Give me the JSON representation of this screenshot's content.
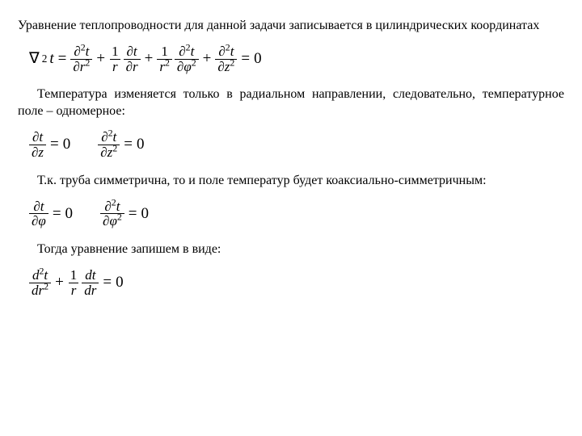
{
  "p1": "Уравнение теплопроводности для данной задачи записывается в цилиндрических координатах",
  "eq1": {
    "lhs": "∇",
    "sq": "2",
    "t": "t",
    "eq": "=",
    "t1n": "∂",
    "t1s": "2",
    "t1t": "t",
    "t1d1": "∂",
    "t1d2": "r",
    "t1ds": "2",
    "plus": "+",
    "one": "1",
    "r": "r",
    "t2n": "∂",
    "t2t": "t",
    "t2d": "∂",
    "t2dr": "r",
    "rsq": "r",
    "rsqe": "2",
    "t3n": "∂",
    "t3s": "2",
    "t3t": "t",
    "t3d": "∂",
    "t3dp": "φ",
    "t3ds": "2",
    "t4n": "∂",
    "t4s": "2",
    "t4t": "t",
    "t4d": "∂",
    "t4dz": "z",
    "t4ds": "2",
    "zero": "0"
  },
  "p2": "Температура изменяется только в радиальном направлении, следовательно, температурное поле – одномерное:",
  "eq2": {
    "a_n": "∂",
    "a_t": "t",
    "a_d": "∂",
    "a_dz": "z",
    "eq": "=",
    "zero": "0",
    "b_n": "∂",
    "b_s": "2",
    "b_t": "t",
    "b_d": "∂",
    "b_dz": "z",
    "b_ds": "2"
  },
  "p3": "Т.к. труба симметрична, то и поле температур будет коаксиально-симметричным:",
  "eq3": {
    "a_n": "∂",
    "a_t": "t",
    "a_d": "∂",
    "a_dp": "φ",
    "eq": "=",
    "zero": "0",
    "b_n": "∂",
    "b_s": "2",
    "b_t": "t",
    "b_d": "∂",
    "b_dp": "φ",
    "b_ds": "2"
  },
  "p4": "Тогда уравнение запишем в виде:",
  "eq4": {
    "n1": "d",
    "s1": "2",
    "t1": "t",
    "d1": "d",
    "d1r": "r",
    "d1s": "2",
    "plus": "+",
    "one": "1",
    "r": "r",
    "n2": "d",
    "t2": "t",
    "d2": "d",
    "d2r": "r",
    "eq": "=",
    "zero": "0"
  }
}
